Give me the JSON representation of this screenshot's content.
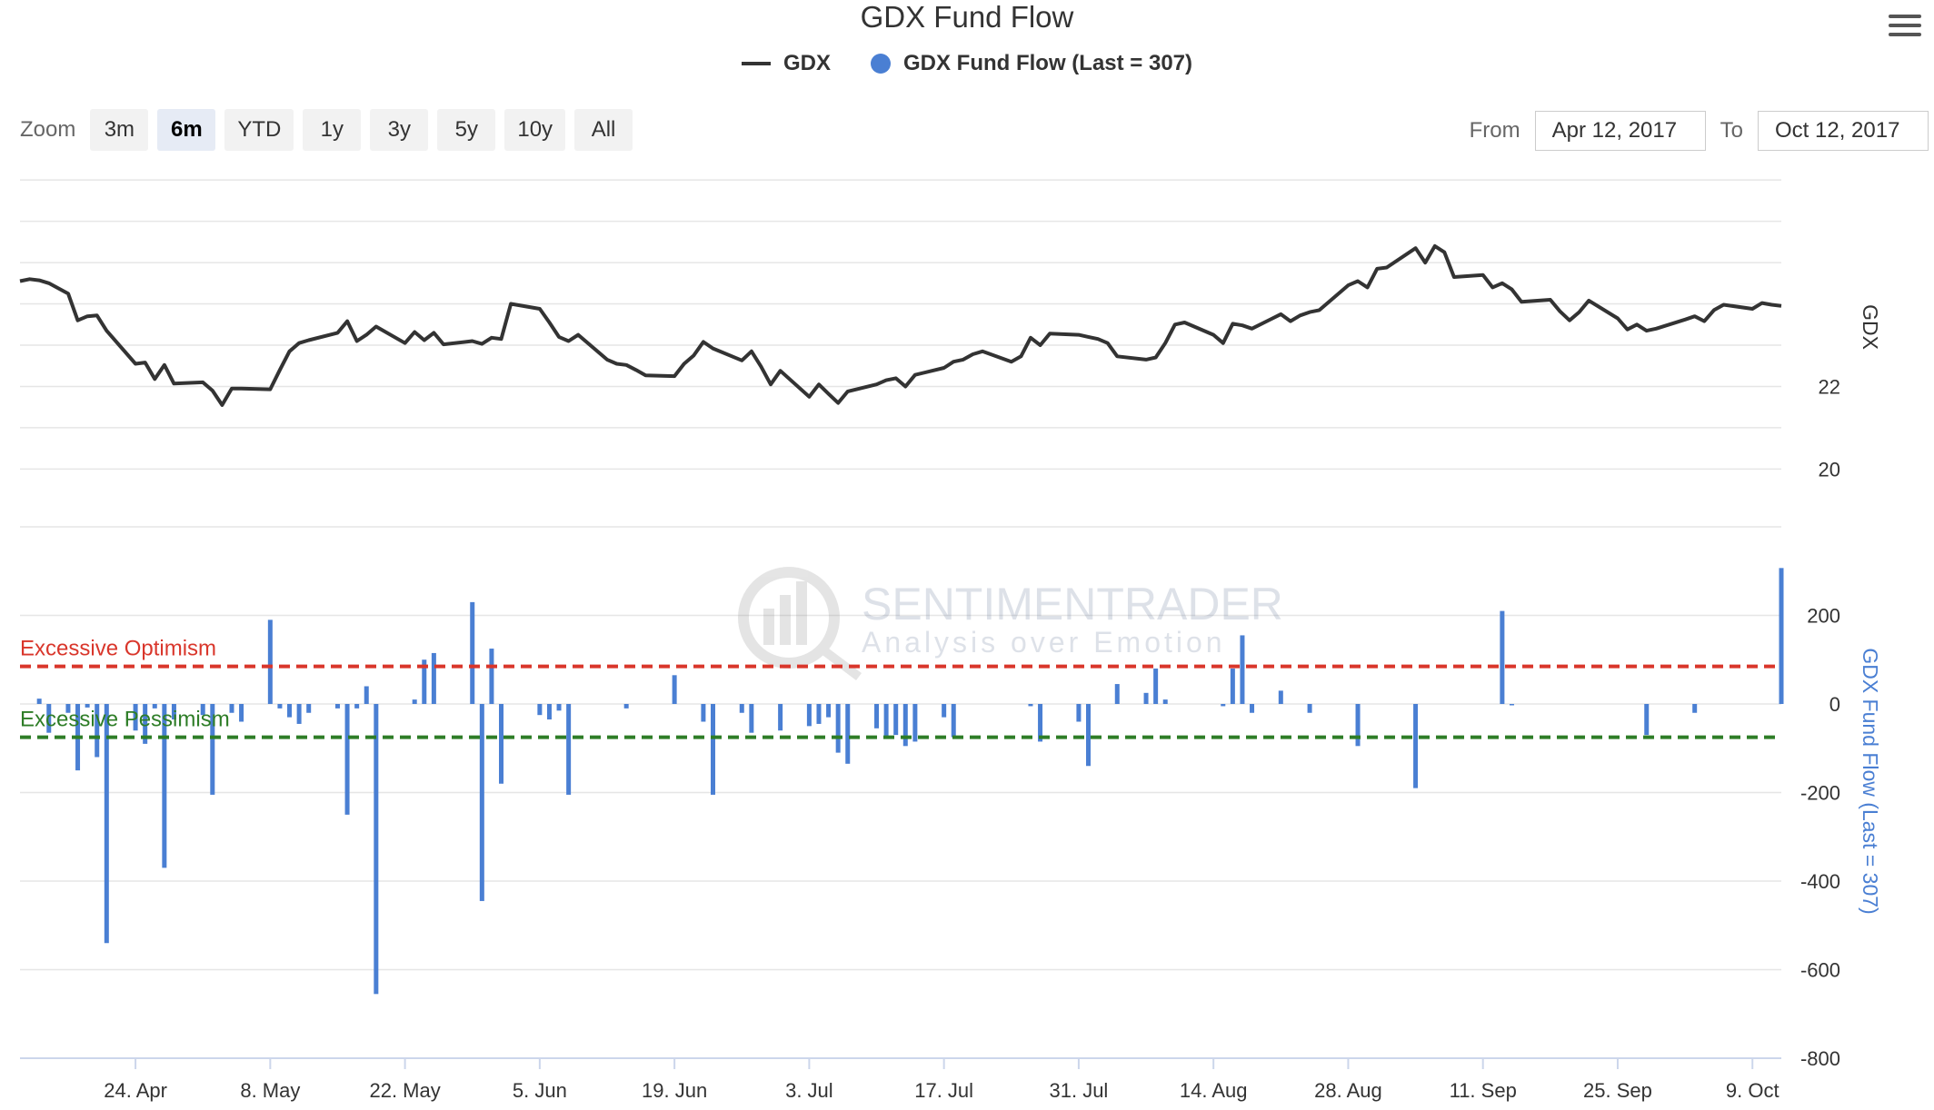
{
  "title": "GDX Fund Flow",
  "legend": {
    "gdx_label": "GDX",
    "flow_label": "GDX Fund Flow (Last = 307)"
  },
  "menu_icon": "hamburger-menu-icon",
  "zoom": {
    "label": "Zoom",
    "buttons": [
      "3m",
      "6m",
      "YTD",
      "1y",
      "3y",
      "5y",
      "10y",
      "All"
    ],
    "active": "6m"
  },
  "range": {
    "from_label": "From",
    "from_value": "Apr 12, 2017",
    "to_label": "To",
    "to_value": "Oct 12, 2017"
  },
  "watermark": {
    "name": "SENTIMENTRADER",
    "tagline": "Analysis over Emotion"
  },
  "colors": {
    "gdx_line": "#333333",
    "flow_bars": "#4a7fd3",
    "optimism": "#d9362b",
    "pessimism": "#2e7d27"
  },
  "chart_data": {
    "type": "line",
    "x_ticks": [
      "24. Apr",
      "8. May",
      "22. May",
      "5. Jun",
      "19. Jun",
      "3. Jul",
      "17. Jul",
      "31. Jul",
      "14. Aug",
      "28. Aug",
      "11. Sep",
      "25. Sep",
      "9. Oct"
    ],
    "x_range": [
      "2017-04-12",
      "2017-10-12"
    ],
    "panes": [
      {
        "name": "GDX",
        "type": "line",
        "ylabel": "GDX",
        "y_ticks": [
          20,
          22
        ],
        "ylim": [
          18.6,
          27.4
        ],
        "series": [
          {
            "name": "GDX",
            "points": [
              [
                "2017-04-12",
                24.55
              ],
              [
                "2017-04-13",
                24.6
              ],
              [
                "2017-04-14",
                24.57
              ],
              [
                "2017-04-15",
                24.5
              ],
              [
                "2017-04-17",
                24.25
              ],
              [
                "2017-04-18",
                23.6
              ],
              [
                "2017-04-19",
                23.7
              ],
              [
                "2017-04-20",
                23.72
              ],
              [
                "2017-04-21",
                23.35
              ],
              [
                "2017-04-24",
                22.55
              ],
              [
                "2017-04-25",
                22.58
              ],
              [
                "2017-04-26",
                22.18
              ],
              [
                "2017-04-27",
                22.52
              ],
              [
                "2017-04-28",
                22.07
              ],
              [
                "2017-05-01",
                22.1
              ],
              [
                "2017-05-02",
                21.9
              ],
              [
                "2017-05-03",
                21.55
              ],
              [
                "2017-05-04",
                21.95
              ],
              [
                "2017-05-05",
                21.95
              ],
              [
                "2017-05-08",
                21.93
              ],
              [
                "2017-05-09",
                22.4
              ],
              [
                "2017-05-10",
                22.85
              ],
              [
                "2017-05-11",
                23.05
              ],
              [
                "2017-05-12",
                23.12
              ],
              [
                "2017-05-15",
                23.3
              ],
              [
                "2017-05-16",
                23.58
              ],
              [
                "2017-05-17",
                23.1
              ],
              [
                "2017-05-18",
                23.25
              ],
              [
                "2017-05-19",
                23.45
              ],
              [
                "2017-05-22",
                23.05
              ],
              [
                "2017-05-23",
                23.32
              ],
              [
                "2017-05-24",
                23.12
              ],
              [
                "2017-05-25",
                23.3
              ],
              [
                "2017-05-26",
                23.02
              ],
              [
                "2017-05-29",
                23.1
              ],
              [
                "2017-05-30",
                23.03
              ],
              [
                "2017-05-31",
                23.18
              ],
              [
                "2017-06-01",
                23.15
              ],
              [
                "2017-06-02",
                24.0
              ],
              [
                "2017-06-05",
                23.88
              ],
              [
                "2017-06-06",
                23.55
              ],
              [
                "2017-06-07",
                23.2
              ],
              [
                "2017-06-08",
                23.1
              ],
              [
                "2017-06-09",
                23.25
              ],
              [
                "2017-06-12",
                22.65
              ],
              [
                "2017-06-13",
                22.55
              ],
              [
                "2017-06-14",
                22.52
              ],
              [
                "2017-06-15",
                22.4
              ],
              [
                "2017-06-16",
                22.27
              ],
              [
                "2017-06-19",
                22.25
              ],
              [
                "2017-06-20",
                22.55
              ],
              [
                "2017-06-21",
                22.75
              ],
              [
                "2017-06-22",
                23.08
              ],
              [
                "2017-06-23",
                22.92
              ],
              [
                "2017-06-26",
                22.63
              ],
              [
                "2017-06-27",
                22.85
              ],
              [
                "2017-06-28",
                22.48
              ],
              [
                "2017-06-29",
                22.05
              ],
              [
                "2017-06-30",
                22.38
              ],
              [
                "2017-07-03",
                21.75
              ],
              [
                "2017-07-04",
                22.05
              ],
              [
                "2017-07-05",
                21.82
              ],
              [
                "2017-07-06",
                21.6
              ],
              [
                "2017-07-07",
                21.88
              ],
              [
                "2017-07-10",
                22.05
              ],
              [
                "2017-07-11",
                22.15
              ],
              [
                "2017-07-12",
                22.2
              ],
              [
                "2017-07-13",
                22.0
              ],
              [
                "2017-07-14",
                22.28
              ],
              [
                "2017-07-17",
                22.45
              ],
              [
                "2017-07-18",
                22.6
              ],
              [
                "2017-07-19",
                22.65
              ],
              [
                "2017-07-20",
                22.78
              ],
              [
                "2017-07-21",
                22.85
              ],
              [
                "2017-07-24",
                22.6
              ],
              [
                "2017-07-25",
                22.73
              ],
              [
                "2017-07-26",
                23.18
              ],
              [
                "2017-07-27",
                23.0
              ],
              [
                "2017-07-28",
                23.28
              ],
              [
                "2017-07-31",
                23.25
              ],
              [
                "2017-08-01",
                23.2
              ],
              [
                "2017-08-02",
                23.15
              ],
              [
                "2017-08-03",
                23.05
              ],
              [
                "2017-08-04",
                22.73
              ],
              [
                "2017-08-07",
                22.65
              ],
              [
                "2017-08-08",
                22.7
              ],
              [
                "2017-08-09",
                23.05
              ],
              [
                "2017-08-10",
                23.5
              ],
              [
                "2017-08-11",
                23.55
              ],
              [
                "2017-08-14",
                23.25
              ],
              [
                "2017-08-15",
                23.05
              ],
              [
                "2017-08-16",
                23.52
              ],
              [
                "2017-08-17",
                23.48
              ],
              [
                "2017-08-18",
                23.4
              ],
              [
                "2017-08-21",
                23.75
              ],
              [
                "2017-08-22",
                23.58
              ],
              [
                "2017-08-23",
                23.72
              ],
              [
                "2017-08-24",
                23.8
              ],
              [
                "2017-08-25",
                23.85
              ],
              [
                "2017-08-28",
                24.45
              ],
              [
                "2017-08-29",
                24.55
              ],
              [
                "2017-08-30",
                24.4
              ],
              [
                "2017-08-31",
                24.85
              ],
              [
                "2017-09-01",
                24.88
              ],
              [
                "2017-09-04",
                25.35
              ],
              [
                "2017-09-05",
                25.0
              ],
              [
                "2017-09-06",
                25.4
              ],
              [
                "2017-09-07",
                25.25
              ],
              [
                "2017-09-08",
                24.65
              ],
              [
                "2017-09-11",
                24.7
              ],
              [
                "2017-09-12",
                24.4
              ],
              [
                "2017-09-13",
                24.5
              ],
              [
                "2017-09-14",
                24.35
              ],
              [
                "2017-09-15",
                24.05
              ],
              [
                "2017-09-18",
                24.1
              ],
              [
                "2017-09-19",
                23.82
              ],
              [
                "2017-09-20",
                23.6
              ],
              [
                "2017-09-21",
                23.8
              ],
              [
                "2017-09-22",
                24.08
              ],
              [
                "2017-09-25",
                23.65
              ],
              [
                "2017-09-26",
                23.38
              ],
              [
                "2017-09-27",
                23.5
              ],
              [
                "2017-09-28",
                23.35
              ],
              [
                "2017-09-29",
                23.4
              ],
              [
                "2017-10-02",
                23.62
              ],
              [
                "2017-10-03",
                23.7
              ],
              [
                "2017-10-04",
                23.58
              ],
              [
                "2017-10-05",
                23.85
              ],
              [
                "2017-10-06",
                23.98
              ],
              [
                "2017-10-09",
                23.88
              ],
              [
                "2017-10-10",
                24.02
              ],
              [
                "2017-10-11",
                23.98
              ],
              [
                "2017-10-12",
                23.95
              ]
            ]
          }
        ]
      },
      {
        "name": "GDX Fund Flow",
        "type": "bar",
        "ylabel": "GDX Fund Flow (Last = 307)",
        "y_ticks": [
          -800,
          -600,
          -400,
          -200,
          0,
          200
        ],
        "ylim": [
          -800,
          400
        ],
        "series": [
          {
            "name": "GDX Fund Flow (Last = 307)",
            "points": [
              [
                "2017-04-14",
                12
              ],
              [
                "2017-04-15",
                -65
              ],
              [
                "2017-04-17",
                -20
              ],
              [
                "2017-04-18",
                -150
              ],
              [
                "2017-04-19",
                -8
              ],
              [
                "2017-04-20",
                -120
              ],
              [
                "2017-04-21",
                -540
              ],
              [
                "2017-04-24",
                -60
              ],
              [
                "2017-04-25",
                -90
              ],
              [
                "2017-04-26",
                -10
              ],
              [
                "2017-04-27",
                -370
              ],
              [
                "2017-04-28",
                -35
              ],
              [
                "2017-05-01",
                -25
              ],
              [
                "2017-05-02",
                -205
              ],
              [
                "2017-05-04",
                -20
              ],
              [
                "2017-05-05",
                -40
              ],
              [
                "2017-05-08",
                190
              ],
              [
                "2017-05-09",
                -10
              ],
              [
                "2017-05-10",
                -30
              ],
              [
                "2017-05-11",
                -45
              ],
              [
                "2017-05-12",
                -20
              ],
              [
                "2017-05-15",
                -10
              ],
              [
                "2017-05-16",
                -250
              ],
              [
                "2017-05-17",
                -10
              ],
              [
                "2017-05-18",
                40
              ],
              [
                "2017-05-19",
                -655
              ],
              [
                "2017-05-23",
                10
              ],
              [
                "2017-05-24",
                100
              ],
              [
                "2017-05-25",
                115
              ],
              [
                "2017-05-29",
                230
              ],
              [
                "2017-05-30",
                -445
              ],
              [
                "2017-05-31",
                125
              ],
              [
                "2017-06-01",
                -180
              ],
              [
                "2017-06-05",
                -25
              ],
              [
                "2017-06-06",
                -35
              ],
              [
                "2017-06-07",
                -15
              ],
              [
                "2017-06-08",
                -205
              ],
              [
                "2017-06-14",
                -10
              ],
              [
                "2017-06-19",
                65
              ],
              [
                "2017-06-22",
                -40
              ],
              [
                "2017-06-23",
                -205
              ],
              [
                "2017-06-26",
                -20
              ],
              [
                "2017-06-27",
                -65
              ],
              [
                "2017-06-30",
                -60
              ],
              [
                "2017-07-03",
                -50
              ],
              [
                "2017-07-04",
                -45
              ],
              [
                "2017-07-05",
                -30
              ],
              [
                "2017-07-06",
                -110
              ],
              [
                "2017-07-07",
                -135
              ],
              [
                "2017-07-10",
                -55
              ],
              [
                "2017-07-11",
                -75
              ],
              [
                "2017-07-12",
                -70
              ],
              [
                "2017-07-13",
                -95
              ],
              [
                "2017-07-14",
                -85
              ],
              [
                "2017-07-17",
                -30
              ],
              [
                "2017-07-18",
                -75
              ],
              [
                "2017-07-26",
                -5
              ],
              [
                "2017-07-27",
                -85
              ],
              [
                "2017-07-31",
                -40
              ],
              [
                "2017-08-01",
                -140
              ],
              [
                "2017-08-04",
                45
              ],
              [
                "2017-08-07",
                25
              ],
              [
                "2017-08-08",
                80
              ],
              [
                "2017-08-09",
                10
              ],
              [
                "2017-08-15",
                -5
              ],
              [
                "2017-08-16",
                80
              ],
              [
                "2017-08-17",
                155
              ],
              [
                "2017-08-18",
                -20
              ],
              [
                "2017-08-21",
                30
              ],
              [
                "2017-08-24",
                -20
              ],
              [
                "2017-08-29",
                -95
              ],
              [
                "2017-09-04",
                -190
              ],
              [
                "2017-09-13",
                210
              ],
              [
                "2017-09-14",
                0
              ],
              [
                "2017-09-28",
                -70
              ],
              [
                "2017-10-03",
                -20
              ],
              [
                "2017-10-12",
                307
              ]
            ]
          }
        ],
        "reference_lines": [
          {
            "label": "Excessive Optimism",
            "value": 85,
            "color": "#d9362b",
            "style": "dashed"
          },
          {
            "label": "Excessive Pessimism",
            "value": -75,
            "color": "#2e7d27",
            "style": "dashed"
          }
        ]
      }
    ],
    "title": "GDX Fund Flow",
    "legend": [
      "GDX",
      "GDX Fund Flow (Last = 307)"
    ],
    "legend_position": "top-center",
    "grid": true
  }
}
